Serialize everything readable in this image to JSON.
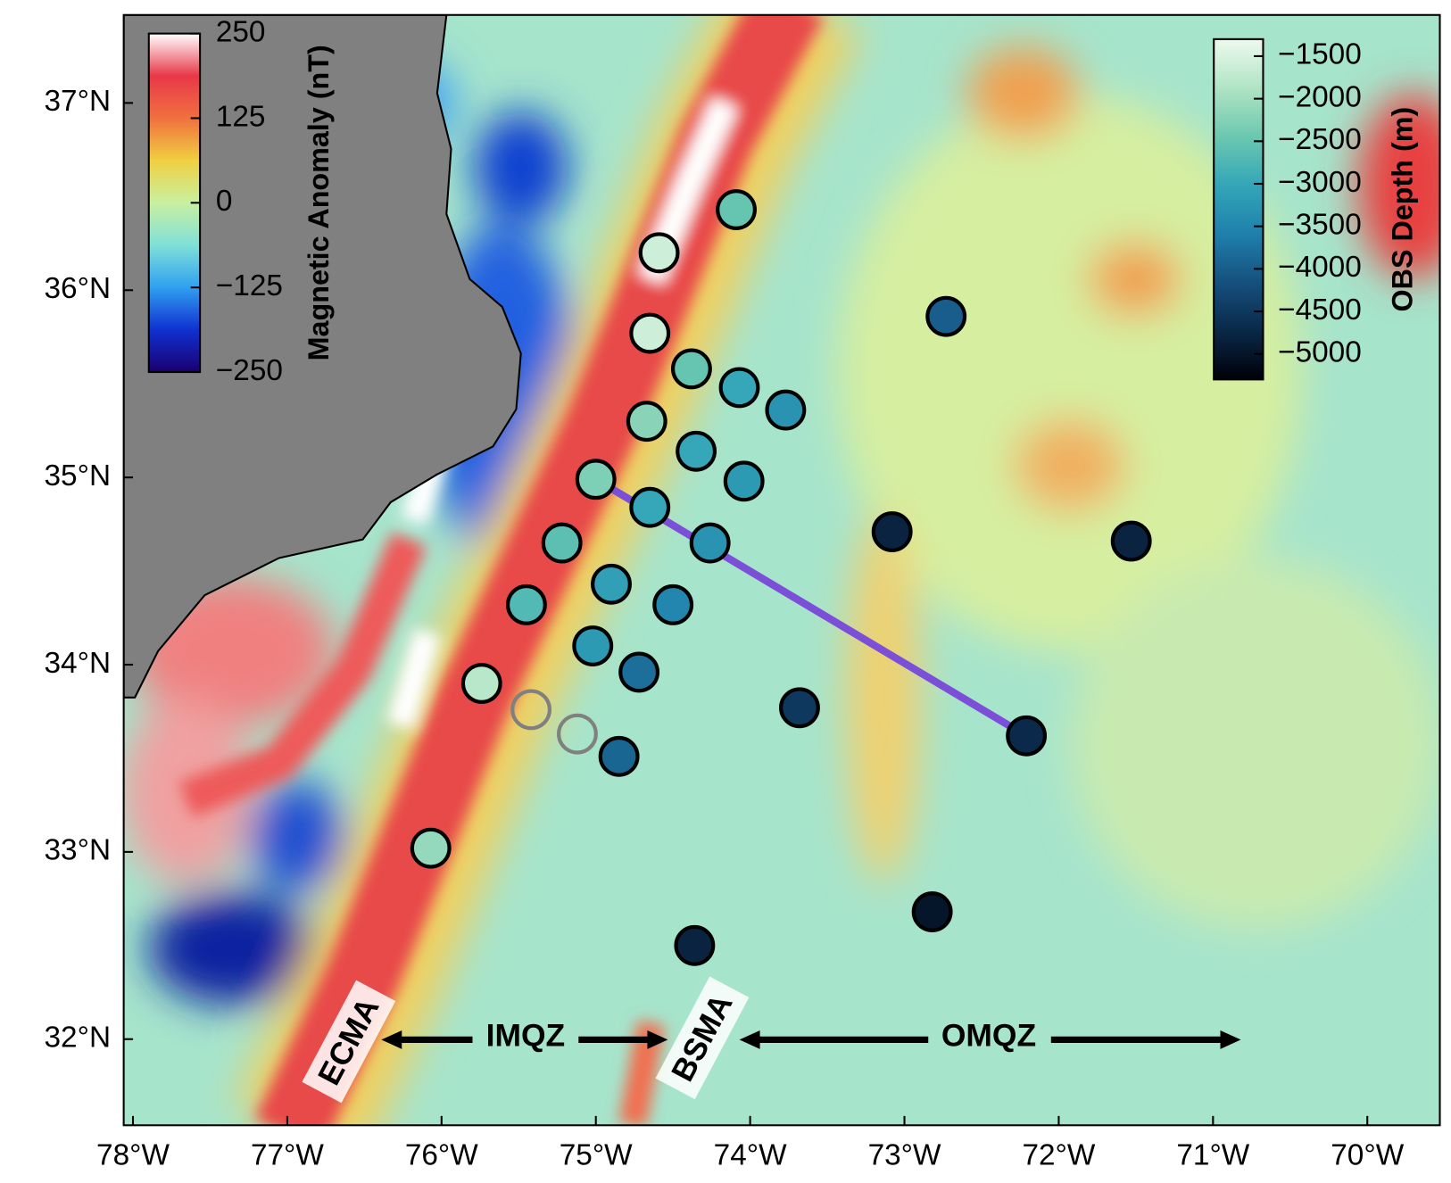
{
  "chart_data": {
    "type": "scatter",
    "xlim": [
      -78.06,
      -69.53
    ],
    "ylim": [
      31.54,
      37.47
    ],
    "xticks": [
      {
        "value": -78,
        "label": "78°W"
      },
      {
        "value": -77,
        "label": "77°W"
      },
      {
        "value": -76,
        "label": "76°W"
      },
      {
        "value": -75,
        "label": "75°W"
      },
      {
        "value": -74,
        "label": "74°W"
      },
      {
        "value": -73,
        "label": "73°W"
      },
      {
        "value": -72,
        "label": "72°W"
      },
      {
        "value": -71,
        "label": "71°W"
      },
      {
        "value": -70,
        "label": "70°W"
      }
    ],
    "yticks": [
      {
        "value": 32,
        "label": "32°N"
      },
      {
        "value": 33,
        "label": "33°N"
      },
      {
        "value": 34,
        "label": "34°N"
      },
      {
        "value": 35,
        "label": "35°N"
      },
      {
        "value": 36,
        "label": "36°N"
      },
      {
        "value": 37,
        "label": "37°N"
      }
    ],
    "x": [
      -74.09,
      -74.59,
      -72.73,
      -74.65,
      -74.38,
      -74.07,
      -73.77,
      -74.67,
      -74.35,
      -74.04,
      -75.0,
      -74.65,
      -73.08,
      -74.26,
      -71.53,
      -75.22,
      -74.9,
      -75.45,
      -74.5,
      -75.02,
      -74.72,
      -75.74,
      -73.68,
      -75.42,
      -75.12,
      -74.85,
      -72.21,
      -76.07,
      -72.82,
      -74.36
    ],
    "values": [
      36.43,
      36.2,
      35.86,
      35.77,
      35.58,
      35.48,
      35.36,
      35.3,
      35.14,
      34.98,
      34.99,
      34.84,
      34.71,
      34.65,
      34.66,
      34.65,
      34.43,
      34.32,
      34.32,
      34.1,
      33.96,
      33.9,
      33.77,
      33.76,
      33.63,
      33.51,
      33.62,
      33.02,
      32.68,
      32.5
    ],
    "depth": [
      -2500,
      -1600,
      -4000,
      -1600,
      -2500,
      -3000,
      -3300,
      -2200,
      -3000,
      -3200,
      -2300,
      -3000,
      -4800,
      -3300,
      -4800,
      -2600,
      -3100,
      -2700,
      -3500,
      -3200,
      -3800,
      -1800,
      -4500,
      null,
      null,
      -3900,
      -4700,
      -2100,
      -5000,
      -4800
    ],
    "profile": {
      "x": [
        -75.0,
        -72.21
      ],
      "values": [
        34.99,
        33.62
      ],
      "color": "#7b4fd8"
    },
    "colorbars": [
      {
        "label": "Magnetic Anomaly (nT)",
        "lim": [
          -250,
          250
        ],
        "ticks": [
          {
            "value": -250,
            "label": "−250"
          },
          {
            "value": -125,
            "label": "−125"
          },
          0,
          125,
          250
        ],
        "colors": [
          "#1a0070",
          "#1030d0",
          "#30a0f0",
          "#80e0d8",
          "#c8f0a0",
          "#f0d040",
          "#f07040",
          "#e83848",
          "#ffffff"
        ]
      },
      {
        "label": "OBS Depth (m)",
        "lim": [
          -5300,
          -1300
        ],
        "ticks": [
          {
            "value": -5000,
            "label": "−5000"
          },
          {
            "value": -4500,
            "label": "−4500"
          },
          {
            "value": -4000,
            "label": "−4000"
          },
          {
            "value": -3500,
            "label": "−3500"
          },
          {
            "value": -3000,
            "label": "−3000"
          },
          {
            "value": -2500,
            "label": "−2500"
          },
          {
            "value": -2000,
            "label": "−2000"
          },
          {
            "value": -1500,
            "label": "−1500"
          }
        ],
        "colors": [
          "#000008",
          "#0a2848",
          "#16507e",
          "#1f80ac",
          "#34a6b8",
          "#6cc8b0",
          "#b0e4c4",
          "#eefaee"
        ]
      }
    ],
    "annotations": [
      "ECMA",
      "IMQZ",
      "BSMA",
      "OMQZ"
    ]
  }
}
